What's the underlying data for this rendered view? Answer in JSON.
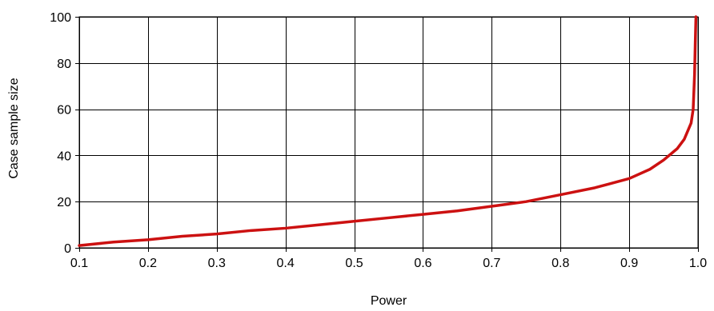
{
  "chart_data": {
    "type": "line",
    "title": "",
    "xlabel": "Power",
    "ylabel": "Case sample size",
    "xlim": [
      0.1,
      1.0
    ],
    "ylim": [
      0,
      100
    ],
    "x_ticks": [
      "0.1",
      "0.2",
      "0.3",
      "0.4",
      "0.5",
      "0.6",
      "0.7",
      "0.8",
      "0.9",
      "1.0"
    ],
    "y_ticks": [
      "0",
      "20",
      "40",
      "60",
      "80",
      "100"
    ],
    "grid": true,
    "legend": "none",
    "series": [
      {
        "color": "#cc1111",
        "x": [
          0.1,
          0.15,
          0.2,
          0.25,
          0.3,
          0.35,
          0.4,
          0.45,
          0.5,
          0.55,
          0.6,
          0.65,
          0.7,
          0.75,
          0.8,
          0.85,
          0.9,
          0.93,
          0.95,
          0.97,
          0.98,
          0.99,
          0.993,
          0.995,
          0.996,
          0.997
        ],
        "y": [
          1,
          2.5,
          3.5,
          5,
          6,
          7.5,
          8.5,
          10,
          11.5,
          13,
          14.5,
          16,
          18,
          20,
          23,
          26,
          30,
          34,
          38,
          43,
          47,
          54,
          60,
          75,
          88,
          100
        ]
      }
    ]
  }
}
